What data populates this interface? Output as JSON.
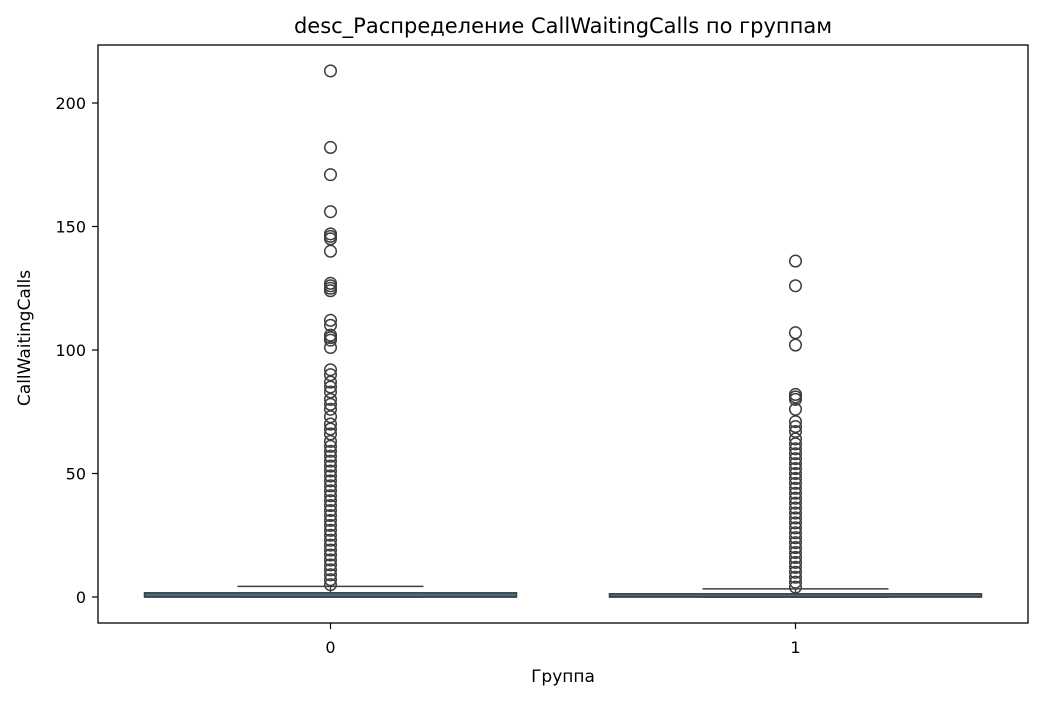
{
  "chart_data": {
    "type": "box",
    "title": "desc_Распределение CallWaitingCalls по группам",
    "xlabel": "Группа",
    "ylabel": "CallWaitingCalls",
    "categories": [
      "0",
      "1"
    ],
    "yticks": [
      0,
      50,
      100,
      150,
      200
    ],
    "ylim": [
      -10.7,
      224
    ],
    "grid": false,
    "colors": {
      "box_fill": "#3b6f8f",
      "line": "#3f3f3f",
      "axis": "#000000"
    },
    "boxes": [
      {
        "category": "0",
        "q1": 0,
        "median": 0,
        "q3": 1.7,
        "whisker_low": 0,
        "whisker_high": 4.3,
        "outliers": [
          213,
          182,
          171,
          156,
          147,
          146,
          145,
          140,
          127,
          126,
          125,
          124,
          112,
          110,
          106,
          105,
          104,
          101,
          92,
          90,
          87,
          85,
          83,
          80,
          78,
          76,
          73,
          70,
          68,
          66,
          63,
          61,
          59,
          57,
          55,
          53,
          51,
          49,
          47,
          45,
          43,
          41,
          39,
          37,
          35,
          33,
          31,
          29,
          27,
          25,
          23,
          21,
          19,
          17,
          15,
          13,
          11,
          9,
          7,
          5
        ]
      },
      {
        "category": "1",
        "q1": 0,
        "median": 0,
        "q3": 1.3,
        "whisker_low": 0,
        "whisker_high": 3.3,
        "outliers": [
          136,
          126,
          107,
          102,
          82,
          81,
          80,
          76,
          71,
          69,
          67,
          64,
          62,
          60,
          58,
          56,
          54,
          52,
          50,
          48,
          46,
          44,
          42,
          40,
          38,
          36,
          34,
          32,
          30,
          28,
          26,
          24,
          22,
          20,
          18,
          16,
          14,
          12,
          10,
          8,
          6,
          4
        ]
      }
    ]
  }
}
